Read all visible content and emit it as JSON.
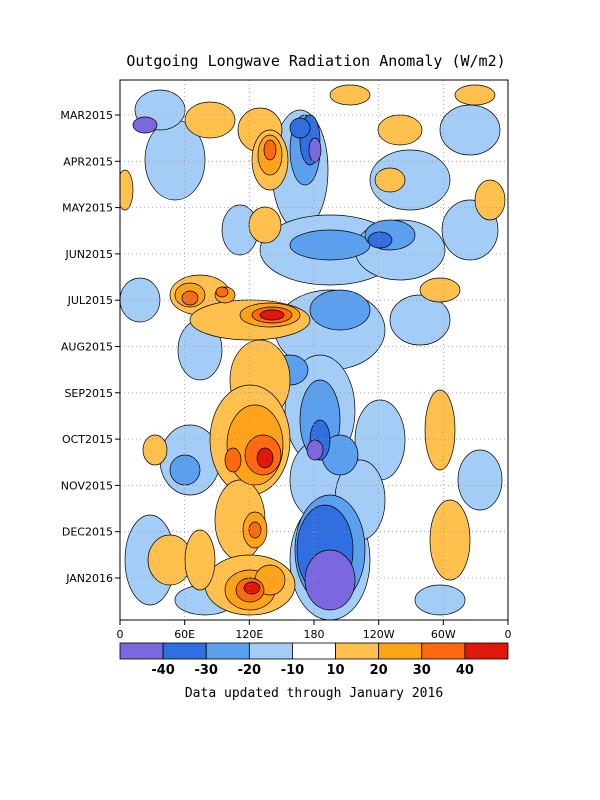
{
  "chart_data": {
    "type": "heatmap",
    "title": "Outgoing Longwave Radiation Anomaly (W/m2)",
    "x_ticks": [
      "0",
      "60E",
      "120E",
      "180",
      "120W",
      "60W",
      "0"
    ],
    "y_ticks": [
      "MAR2015",
      "APR2015",
      "MAY2015",
      "JUN2015",
      "JUL2015",
      "AUG2015",
      "SEP2015",
      "OCT2015",
      "NOV2015",
      "DEC2015",
      "JAN2016"
    ],
    "xlim": [
      0,
      360
    ],
    "grid": true,
    "colorbar": {
      "labels": [
        "-40",
        "-30",
        "-20",
        "-10",
        "10",
        "20",
        "30",
        "40"
      ],
      "colors": [
        "#7b68e0",
        "#2f6fe0",
        "#5aa0ee",
        "#a3cdf7",
        "#ffffff",
        "#ffc04d",
        "#ffa31a",
        "#ff6a10",
        "#dd1a0a"
      ]
    },
    "note": "Data updated through January 2016"
  }
}
